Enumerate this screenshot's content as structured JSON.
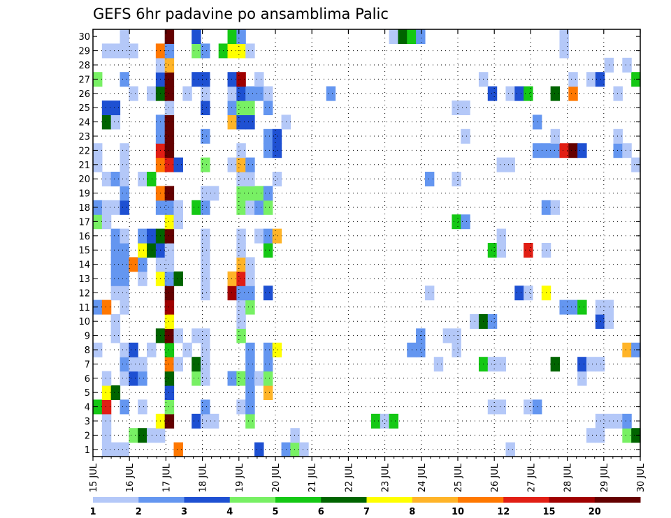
{
  "chart_data": {
    "type": "heatmap",
    "title": "GEFS 6hr padavine po ansamblima Palic",
    "xlabel": "",
    "ylabel": "",
    "x_tick_labels": [
      "15 JUL",
      "16 JUL",
      "17 JUL",
      "18 JUL",
      "19 JUL",
      "20 JUL",
      "21 JUL",
      "22 JUL",
      "23 JUL",
      "24 JUL",
      "25 JUL",
      "26 JUL",
      "27 JUL",
      "28 JUL",
      "29 JUL",
      "30 JUL"
    ],
    "y_tick_labels": [
      "1",
      "2",
      "3",
      "4",
      "5",
      "6",
      "7",
      "8",
      "9",
      "10",
      "11",
      "12",
      "13",
      "14",
      "15",
      "16",
      "17",
      "18",
      "19",
      "20",
      "21",
      "22",
      "23",
      "24",
      "25",
      "26",
      "27",
      "28",
      "29",
      "30"
    ],
    "members": 30,
    "steps": 61,
    "grid": true,
    "colorbar": {
      "placement": "bottom",
      "labels": [
        "1",
        "2",
        "3",
        "4",
        "5",
        "6",
        "7",
        "8",
        "10",
        "12",
        "15",
        "20"
      ],
      "colors": [
        "#b4c8f8",
        "#6496f0",
        "#1e50d2",
        "#78f064",
        "#14c814",
        "#006400",
        "#ffff00",
        "#ffb428",
        "#ff7800",
        "#e11e14",
        "#a00000",
        "#640000"
      ]
    },
    "cells": [
      [
        1,
        2,
        1
      ],
      [
        1,
        3,
        1
      ],
      [
        1,
        4,
        1
      ],
      [
        1,
        10,
        9
      ],
      [
        1,
        19,
        3
      ],
      [
        1,
        22,
        2
      ],
      [
        1,
        23,
        4
      ],
      [
        1,
        24,
        1
      ],
      [
        1,
        47,
        1
      ],
      [
        2,
        2,
        1
      ],
      [
        2,
        5,
        4
      ],
      [
        2,
        6,
        6
      ],
      [
        2,
        7,
        1
      ],
      [
        2,
        8,
        1
      ],
      [
        2,
        23,
        1
      ],
      [
        2,
        56,
        1
      ],
      [
        2,
        57,
        1
      ],
      [
        2,
        60,
        4
      ],
      [
        2,
        61,
        6
      ],
      [
        3,
        2,
        1
      ],
      [
        3,
        8,
        7
      ],
      [
        3,
        9,
        12
      ],
      [
        3,
        12,
        3
      ],
      [
        3,
        13,
        1
      ],
      [
        3,
        14,
        1
      ],
      [
        3,
        18,
        4
      ],
      [
        3,
        32,
        5
      ],
      [
        3,
        33,
        1
      ],
      [
        3,
        34,
        5
      ],
      [
        3,
        57,
        1
      ],
      [
        3,
        58,
        1
      ],
      [
        3,
        59,
        1
      ],
      [
        3,
        60,
        2
      ],
      [
        4,
        1,
        5
      ],
      [
        4,
        2,
        10
      ],
      [
        4,
        4,
        2
      ],
      [
        4,
        6,
        1
      ],
      [
        4,
        9,
        4
      ],
      [
        4,
        13,
        2
      ],
      [
        4,
        17,
        1
      ],
      [
        4,
        18,
        2
      ],
      [
        4,
        45,
        1
      ],
      [
        4,
        46,
        1
      ],
      [
        4,
        49,
        1
      ],
      [
        4,
        50,
        2
      ],
      [
        5,
        2,
        7
      ],
      [
        5,
        3,
        6
      ],
      [
        5,
        9,
        3
      ],
      [
        5,
        18,
        2
      ],
      [
        5,
        20,
        8
      ],
      [
        6,
        2,
        1
      ],
      [
        6,
        4,
        1
      ],
      [
        6,
        5,
        3
      ],
      [
        6,
        6,
        2
      ],
      [
        6,
        9,
        6
      ],
      [
        6,
        12,
        4
      ],
      [
        6,
        13,
        1
      ],
      [
        6,
        16,
        2
      ],
      [
        6,
        17,
        4
      ],
      [
        6,
        18,
        2
      ],
      [
        6,
        19,
        1
      ],
      [
        6,
        20,
        4
      ],
      [
        6,
        55,
        1
      ],
      [
        7,
        4,
        2
      ],
      [
        7,
        5,
        1
      ],
      [
        7,
        6,
        1
      ],
      [
        7,
        9,
        9
      ],
      [
        7,
        10,
        1
      ],
      [
        7,
        12,
        6
      ],
      [
        7,
        13,
        1
      ],
      [
        7,
        18,
        2
      ],
      [
        7,
        20,
        2
      ],
      [
        7,
        39,
        1
      ],
      [
        7,
        44,
        5
      ],
      [
        7,
        45,
        1
      ],
      [
        7,
        46,
        1
      ],
      [
        7,
        52,
        6
      ],
      [
        7,
        55,
        3
      ],
      [
        7,
        56,
        1
      ],
      [
        7,
        57,
        1
      ],
      [
        8,
        1,
        1
      ],
      [
        8,
        4,
        1
      ],
      [
        8,
        5,
        3
      ],
      [
        8,
        7,
        1
      ],
      [
        8,
        9,
        5
      ],
      [
        8,
        11,
        1
      ],
      [
        8,
        13,
        1
      ],
      [
        8,
        18,
        2
      ],
      [
        8,
        20,
        2
      ],
      [
        8,
        21,
        7
      ],
      [
        8,
        36,
        2
      ],
      [
        8,
        37,
        2
      ],
      [
        8,
        41,
        1
      ],
      [
        8,
        60,
        8
      ],
      [
        8,
        61,
        2
      ],
      [
        9,
        3,
        1
      ],
      [
        9,
        8,
        6
      ],
      [
        9,
        9,
        12
      ],
      [
        9,
        10,
        1
      ],
      [
        9,
        12,
        1
      ],
      [
        9,
        13,
        1
      ],
      [
        9,
        17,
        4
      ],
      [
        9,
        37,
        2
      ],
      [
        9,
        40,
        1
      ],
      [
        9,
        41,
        1
      ],
      [
        10,
        3,
        1
      ],
      [
        10,
        9,
        7
      ],
      [
        10,
        17,
        1
      ],
      [
        10,
        43,
        1
      ],
      [
        10,
        44,
        6
      ],
      [
        10,
        45,
        2
      ],
      [
        10,
        57,
        3
      ],
      [
        10,
        58,
        1
      ],
      [
        11,
        1,
        2
      ],
      [
        11,
        2,
        9
      ],
      [
        11,
        4,
        1
      ],
      [
        11,
        9,
        11
      ],
      [
        11,
        17,
        1
      ],
      [
        11,
        18,
        4
      ],
      [
        11,
        53,
        2
      ],
      [
        11,
        54,
        2
      ],
      [
        11,
        55,
        5
      ],
      [
        11,
        57,
        1
      ],
      [
        11,
        58,
        1
      ],
      [
        12,
        3,
        1
      ],
      [
        12,
        4,
        1
      ],
      [
        12,
        9,
        12
      ],
      [
        12,
        13,
        1
      ],
      [
        12,
        16,
        11
      ],
      [
        12,
        17,
        2
      ],
      [
        12,
        18,
        2
      ],
      [
        12,
        20,
        3
      ],
      [
        12,
        38,
        1
      ],
      [
        12,
        48,
        3
      ],
      [
        12,
        49,
        1
      ],
      [
        12,
        51,
        7
      ],
      [
        13,
        3,
        2
      ],
      [
        13,
        4,
        2
      ],
      [
        13,
        6,
        1
      ],
      [
        13,
        8,
        7
      ],
      [
        13,
        9,
        2
      ],
      [
        13,
        10,
        6
      ],
      [
        13,
        13,
        1
      ],
      [
        13,
        16,
        8
      ],
      [
        13,
        17,
        10
      ],
      [
        13,
        18,
        1
      ],
      [
        14,
        3,
        2
      ],
      [
        14,
        4,
        2
      ],
      [
        14,
        5,
        9
      ],
      [
        14,
        6,
        2
      ],
      [
        14,
        8,
        1
      ],
      [
        14,
        9,
        1
      ],
      [
        14,
        13,
        1
      ],
      [
        14,
        17,
        8
      ],
      [
        14,
        18,
        1
      ],
      [
        15,
        3,
        2
      ],
      [
        15,
        4,
        2
      ],
      [
        15,
        6,
        7
      ],
      [
        15,
        7,
        6
      ],
      [
        15,
        8,
        3
      ],
      [
        15,
        9,
        1
      ],
      [
        15,
        13,
        1
      ],
      [
        15,
        17,
        1
      ],
      [
        15,
        20,
        5
      ],
      [
        15,
        45,
        5
      ],
      [
        15,
        46,
        1
      ],
      [
        15,
        49,
        10
      ],
      [
        15,
        51,
        1
      ],
      [
        16,
        3,
        2
      ],
      [
        16,
        4,
        1
      ],
      [
        16,
        6,
        2
      ],
      [
        16,
        7,
        3
      ],
      [
        16,
        8,
        6
      ],
      [
        16,
        9,
        12
      ],
      [
        16,
        13,
        1
      ],
      [
        16,
        17,
        1
      ],
      [
        16,
        19,
        1
      ],
      [
        16,
        20,
        2
      ],
      [
        16,
        21,
        8
      ],
      [
        16,
        46,
        1
      ],
      [
        17,
        1,
        4
      ],
      [
        17,
        2,
        1
      ],
      [
        17,
        9,
        7
      ],
      [
        17,
        10,
        1
      ],
      [
        17,
        41,
        5
      ],
      [
        17,
        42,
        2
      ],
      [
        18,
        1,
        2
      ],
      [
        18,
        2,
        1
      ],
      [
        18,
        3,
        1
      ],
      [
        18,
        4,
        3
      ],
      [
        18,
        8,
        2
      ],
      [
        18,
        9,
        2
      ],
      [
        18,
        10,
        1
      ],
      [
        18,
        12,
        5
      ],
      [
        18,
        13,
        2
      ],
      [
        18,
        17,
        4
      ],
      [
        18,
        18,
        1
      ],
      [
        18,
        19,
        2
      ],
      [
        18,
        20,
        4
      ],
      [
        18,
        51,
        2
      ],
      [
        18,
        52,
        1
      ],
      [
        19,
        4,
        2
      ],
      [
        19,
        8,
        9
      ],
      [
        19,
        9,
        12
      ],
      [
        19,
        13,
        1
      ],
      [
        19,
        14,
        1
      ],
      [
        19,
        17,
        4
      ],
      [
        19,
        18,
        4
      ],
      [
        19,
        19,
        4
      ],
      [
        19,
        20,
        2
      ],
      [
        20,
        2,
        1
      ],
      [
        20,
        3,
        2
      ],
      [
        20,
        4,
        1
      ],
      [
        20,
        6,
        1
      ],
      [
        20,
        7,
        5
      ],
      [
        20,
        17,
        1
      ],
      [
        20,
        18,
        1
      ],
      [
        20,
        21,
        1
      ],
      [
        20,
        38,
        2
      ],
      [
        20,
        41,
        1
      ],
      [
        21,
        1,
        1
      ],
      [
        21,
        4,
        1
      ],
      [
        21,
        8,
        9
      ],
      [
        21,
        9,
        10
      ],
      [
        21,
        10,
        3
      ],
      [
        21,
        13,
        4
      ],
      [
        21,
        16,
        1
      ],
      [
        21,
        17,
        8
      ],
      [
        21,
        18,
        2
      ],
      [
        21,
        46,
        1
      ],
      [
        21,
        47,
        1
      ],
      [
        21,
        61,
        1
      ],
      [
        22,
        1,
        1
      ],
      [
        22,
        4,
        1
      ],
      [
        22,
        8,
        10
      ],
      [
        22,
        9,
        12
      ],
      [
        22,
        17,
        1
      ],
      [
        22,
        20,
        2
      ],
      [
        22,
        21,
        3
      ],
      [
        22,
        50,
        2
      ],
      [
        22,
        51,
        2
      ],
      [
        22,
        52,
        2
      ],
      [
        22,
        53,
        10
      ],
      [
        22,
        54,
        12
      ],
      [
        22,
        55,
        3
      ],
      [
        22,
        59,
        2
      ],
      [
        22,
        60,
        1
      ],
      [
        23,
        8,
        2
      ],
      [
        23,
        9,
        12
      ],
      [
        23,
        13,
        2
      ],
      [
        23,
        20,
        2
      ],
      [
        23,
        21,
        3
      ],
      [
        23,
        42,
        1
      ],
      [
        23,
        52,
        1
      ],
      [
        23,
        59,
        1
      ],
      [
        24,
        2,
        6
      ],
      [
        24,
        3,
        1
      ],
      [
        24,
        8,
        2
      ],
      [
        24,
        9,
        12
      ],
      [
        24,
        16,
        8
      ],
      [
        24,
        17,
        3
      ],
      [
        24,
        18,
        3
      ],
      [
        24,
        22,
        1
      ],
      [
        24,
        50,
        2
      ],
      [
        25,
        2,
        3
      ],
      [
        25,
        3,
        3
      ],
      [
        25,
        9,
        1
      ],
      [
        25,
        13,
        3
      ],
      [
        25,
        16,
        2
      ],
      [
        25,
        17,
        4
      ],
      [
        25,
        18,
        4
      ],
      [
        25,
        20,
        2
      ],
      [
        25,
        41,
        1
      ],
      [
        25,
        42,
        1
      ],
      [
        26,
        5,
        1
      ],
      [
        26,
        7,
        1
      ],
      [
        26,
        8,
        6
      ],
      [
        26,
        9,
        12
      ],
      [
        26,
        11,
        1
      ],
      [
        26,
        13,
        1
      ],
      [
        26,
        16,
        1
      ],
      [
        26,
        17,
        3
      ],
      [
        26,
        18,
        2
      ],
      [
        26,
        19,
        2
      ],
      [
        26,
        20,
        1
      ],
      [
        26,
        27,
        2
      ],
      [
        26,
        45,
        3
      ],
      [
        26,
        47,
        1
      ],
      [
        26,
        48,
        3
      ],
      [
        26,
        49,
        5
      ],
      [
        26,
        52,
        6
      ],
      [
        26,
        54,
        9
      ],
      [
        26,
        59,
        1
      ],
      [
        27,
        1,
        4
      ],
      [
        27,
        4,
        2
      ],
      [
        27,
        8,
        3
      ],
      [
        27,
        9,
        12
      ],
      [
        27,
        12,
        3
      ],
      [
        27,
        13,
        3
      ],
      [
        27,
        16,
        3
      ],
      [
        27,
        17,
        11
      ],
      [
        27,
        19,
        1
      ],
      [
        27,
        44,
        1
      ],
      [
        27,
        54,
        1
      ],
      [
        27,
        56,
        1
      ],
      [
        27,
        57,
        3
      ],
      [
        27,
        61,
        5
      ],
      [
        28,
        8,
        1
      ],
      [
        28,
        9,
        8
      ],
      [
        28,
        58,
        1
      ],
      [
        28,
        60,
        1
      ],
      [
        29,
        2,
        1
      ],
      [
        29,
        3,
        1
      ],
      [
        29,
        4,
        1
      ],
      [
        29,
        5,
        1
      ],
      [
        29,
        8,
        9
      ],
      [
        29,
        9,
        2
      ],
      [
        29,
        12,
        4
      ],
      [
        29,
        13,
        2
      ],
      [
        29,
        15,
        5
      ],
      [
        29,
        16,
        7
      ],
      [
        29,
        17,
        7
      ],
      [
        29,
        18,
        1
      ],
      [
        29,
        53,
        1
      ],
      [
        30,
        4,
        1
      ],
      [
        30,
        9,
        12
      ],
      [
        30,
        12,
        3
      ],
      [
        30,
        16,
        5
      ],
      [
        30,
        17,
        2
      ],
      [
        30,
        34,
        1
      ],
      [
        30,
        35,
        6
      ],
      [
        30,
        36,
        5
      ],
      [
        30,
        37,
        2
      ],
      [
        30,
        53,
        1
      ]
    ]
  }
}
